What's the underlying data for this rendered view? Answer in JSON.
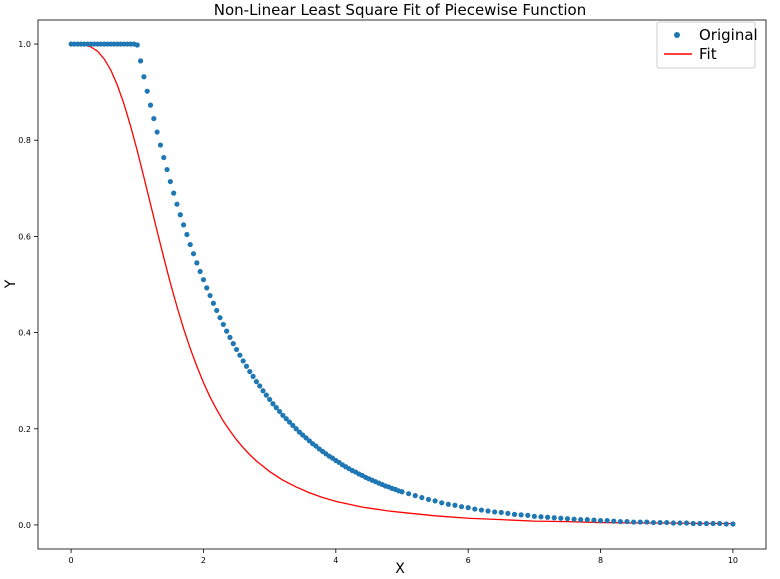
{
  "chart_data": {
    "type": "scatter",
    "title": "Non-Linear Least Square Fit of Piecewise Function",
    "xlabel": "X",
    "ylabel": "Y",
    "xlim": [
      -0.5,
      10.5
    ],
    "ylim": [
      -0.05,
      1.05
    ],
    "xticks": [
      0,
      2,
      4,
      6,
      8,
      10
    ],
    "xtick_labels": [
      "0",
      "2",
      "4",
      "6",
      "8",
      "10"
    ],
    "yticks": [
      0.0,
      0.2,
      0.4,
      0.6,
      0.8,
      1.0
    ],
    "ytick_labels": [
      "0.0",
      "0.2",
      "0.4",
      "0.6",
      "0.8",
      "1.0"
    ],
    "grid": false,
    "legend_position": "top-right",
    "series": [
      {
        "name": "Original",
        "kind": "scatter",
        "color": "#1f77b4",
        "x": [
          0.0,
          0.05,
          0.1,
          0.15,
          0.2,
          0.25,
          0.3,
          0.35,
          0.4,
          0.45,
          0.5,
          0.55,
          0.6,
          0.65,
          0.7,
          0.75,
          0.8,
          0.85,
          0.9,
          0.95,
          1.0,
          1.05,
          1.1,
          1.15,
          1.2,
          1.25,
          1.3,
          1.35,
          1.4,
          1.45,
          1.5,
          1.55,
          1.6,
          1.65,
          1.7,
          1.75,
          1.8,
          1.85,
          1.9,
          1.95,
          2.0,
          2.05,
          2.1,
          2.15,
          2.2,
          2.25,
          2.3,
          2.35,
          2.4,
          2.45,
          2.5,
          2.55,
          2.6,
          2.65,
          2.7,
          2.75,
          2.8,
          2.85,
          2.9,
          2.95,
          3.0,
          3.05,
          3.1,
          3.15,
          3.2,
          3.25,
          3.3,
          3.35,
          3.4,
          3.45,
          3.5,
          3.55,
          3.6,
          3.65,
          3.7,
          3.75,
          3.8,
          3.85,
          3.9,
          3.95,
          4.0,
          4.05,
          4.1,
          4.15,
          4.2,
          4.25,
          4.3,
          4.35,
          4.4,
          4.45,
          4.5,
          4.55,
          4.6,
          4.65,
          4.7,
          4.75,
          4.8,
          4.85,
          4.9,
          4.95,
          5.0,
          5.1,
          5.2,
          5.3,
          5.4,
          5.5,
          5.6,
          5.7,
          5.8,
          5.9,
          6.0,
          6.1,
          6.2,
          6.3,
          6.4,
          6.5,
          6.6,
          6.7,
          6.8,
          6.9,
          7.0,
          7.1,
          7.2,
          7.3,
          7.4,
          7.5,
          7.6,
          7.7,
          7.8,
          7.9,
          8.0,
          8.1,
          8.2,
          8.3,
          8.4,
          8.5,
          8.6,
          8.7,
          8.8,
          8.9,
          9.0,
          9.1,
          9.2,
          9.3,
          9.4,
          9.5,
          9.6,
          9.7,
          9.8,
          9.9,
          10.0
        ],
        "y": [
          1.0,
          1.0,
          1.0,
          1.0,
          1.0,
          1.0,
          1.0,
          1.0,
          1.0,
          1.0,
          1.0,
          1.0,
          1.0,
          1.0,
          1.0,
          1.0,
          1.0,
          1.0,
          1.0,
          1.0,
          0.998,
          0.965,
          0.932,
          0.902,
          0.873,
          0.845,
          0.817,
          0.79,
          0.764,
          0.739,
          0.714,
          0.69,
          0.667,
          0.645,
          0.624,
          0.604,
          0.583,
          0.564,
          0.545,
          0.527,
          0.51,
          0.493,
          0.477,
          0.461,
          0.446,
          0.431,
          0.417,
          0.403,
          0.39,
          0.377,
          0.365,
          0.353,
          0.341,
          0.33,
          0.319,
          0.309,
          0.298,
          0.289,
          0.279,
          0.27,
          0.261,
          0.252,
          0.244,
          0.236,
          0.228,
          0.221,
          0.214,
          0.207,
          0.2,
          0.193,
          0.187,
          0.181,
          0.175,
          0.169,
          0.164,
          0.158,
          0.153,
          0.148,
          0.143,
          0.139,
          0.134,
          0.13,
          0.125,
          0.121,
          0.117,
          0.113,
          0.11,
          0.106,
          0.103,
          0.099,
          0.096,
          0.093,
          0.09,
          0.087,
          0.084,
          0.081,
          0.079,
          0.076,
          0.074,
          0.071,
          0.069,
          0.065,
          0.061,
          0.057,
          0.053,
          0.05,
          0.046,
          0.043,
          0.041,
          0.038,
          0.036,
          0.033,
          0.031,
          0.029,
          0.027,
          0.026,
          0.024,
          0.022,
          0.021,
          0.02,
          0.018,
          0.017,
          0.016,
          0.015,
          0.014,
          0.013,
          0.012,
          0.011,
          0.011,
          0.01,
          0.009,
          0.009,
          0.008,
          0.007,
          0.007,
          0.006,
          0.006,
          0.006,
          0.005,
          0.005,
          0.005,
          0.004,
          0.004,
          0.004,
          0.003,
          0.003,
          0.003,
          0.003,
          0.003,
          0.002,
          0.002
        ]
      },
      {
        "name": "Fit",
        "kind": "line",
        "color": "#ff0000",
        "x": [
          0.0,
          0.1,
          0.2,
          0.3,
          0.4,
          0.5,
          0.6,
          0.7,
          0.8,
          0.9,
          1.0,
          1.1,
          1.2,
          1.3,
          1.4,
          1.5,
          1.6,
          1.7,
          1.8,
          1.9,
          2.0,
          2.1,
          2.2,
          2.3,
          2.4,
          2.5,
          2.6,
          2.7,
          2.8,
          2.9,
          3.0,
          3.2,
          3.4,
          3.6,
          3.8,
          4.0,
          4.2,
          4.4,
          4.6,
          4.8,
          5.0,
          5.5,
          6.0,
          6.5,
          7.0,
          7.5,
          8.0,
          8.5,
          9.0,
          9.5,
          10.0
        ],
        "y": [
          1.0,
          1.0,
          0.998,
          0.994,
          0.985,
          0.969,
          0.946,
          0.914,
          0.875,
          0.829,
          0.778,
          0.723,
          0.667,
          0.611,
          0.556,
          0.503,
          0.454,
          0.408,
          0.367,
          0.33,
          0.296,
          0.266,
          0.24,
          0.216,
          0.196,
          0.177,
          0.161,
          0.146,
          0.133,
          0.122,
          0.111,
          0.093,
          0.079,
          0.067,
          0.057,
          0.049,
          0.043,
          0.037,
          0.033,
          0.029,
          0.026,
          0.019,
          0.014,
          0.011,
          0.008,
          0.007,
          0.005,
          0.004,
          0.004,
          0.003,
          0.003
        ]
      }
    ]
  }
}
